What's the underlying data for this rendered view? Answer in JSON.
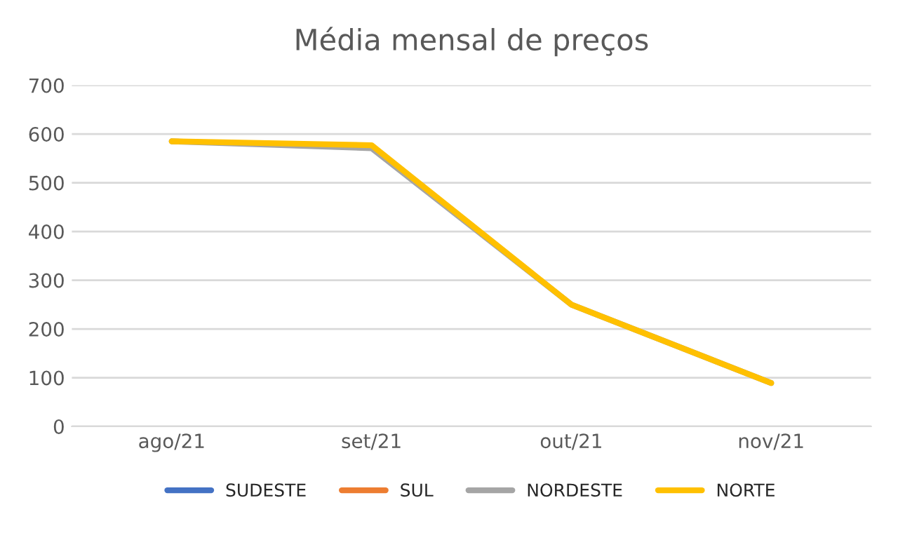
{
  "chart_data": {
    "type": "line",
    "title": "Média mensal de preços",
    "categories": [
      "ago/21",
      "set/21",
      "out/21",
      "nov/21"
    ],
    "series": [
      {
        "name": "SUDESTE",
        "color": "#4472c4",
        "values": [
          null,
          null,
          null,
          null
        ]
      },
      {
        "name": "SUL",
        "color": "#ed7d31",
        "values": [
          null,
          null,
          null,
          null
        ]
      },
      {
        "name": "NORDESTE",
        "color": "#a5a5a5",
        "values": [
          585,
          571,
          250,
          89
        ]
      },
      {
        "name": "NORTE",
        "color": "#ffc000",
        "values": [
          585,
          577,
          250,
          89
        ]
      }
    ],
    "ylim": [
      0,
      700
    ],
    "yticks": [
      0,
      100,
      200,
      300,
      400,
      500,
      600,
      700
    ],
    "grid": "y",
    "legend": "bottom",
    "marker": "none",
    "line_style": "solid"
  }
}
